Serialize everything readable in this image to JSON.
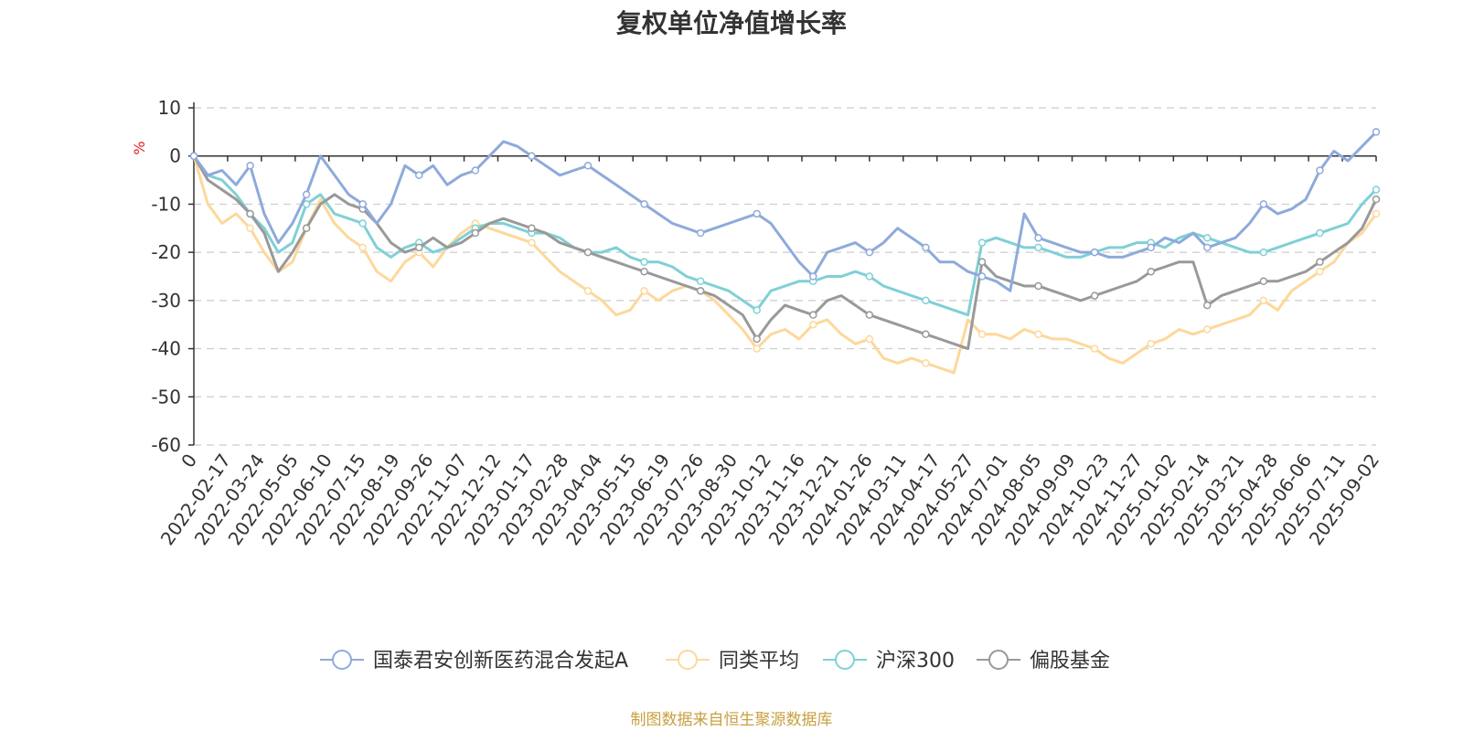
{
  "chart_data": {
    "type": "line",
    "title": "复权单位净值增长率",
    "ylabel": "%",
    "ylim": [
      -60,
      10
    ],
    "yticks": [
      "10",
      "0",
      "-10",
      "-20",
      "-30",
      "-40",
      "-50",
      "-60"
    ],
    "x_first_label": "0",
    "x_tick_labels": [
      "2022-02-17",
      "2022-03-24",
      "2022-05-05",
      "2022-06-10",
      "2022-07-15",
      "2022-08-19",
      "2022-09-26",
      "2022-11-07",
      "2022-12-12",
      "2023-01-17",
      "2023-02-28",
      "2023-04-04",
      "2023-05-15",
      "2023-06-19",
      "2023-07-26",
      "2023-08-30",
      "2023-10-12",
      "2023-11-16",
      "2023-12-21",
      "2024-01-26",
      "2024-03-11",
      "2024-04-17",
      "2024-05-27",
      "2024-07-01",
      "2024-08-05",
      "2024-09-09",
      "2024-10-23",
      "2024-11-27",
      "2025-01-02",
      "2025-02-14",
      "2025-03-21",
      "2025-04-28",
      "2025-06-06",
      "2025-07-11",
      "2025-09-02"
    ],
    "grid": true,
    "legend_position": "bottom",
    "series": [
      {
        "name": "国泰君安创新医药混合发起A",
        "color": "#8eaadb",
        "values": [
          0,
          -4,
          -3,
          -6,
          -2,
          -12,
          -18,
          -14,
          -8,
          0,
          -4,
          -8,
          -10,
          -14,
          -10,
          -2,
          -4,
          -2,
          -6,
          -4,
          -3,
          0,
          3,
          2,
          0,
          -2,
          -4,
          -3,
          -2,
          -4,
          -6,
          -8,
          -10,
          -12,
          -14,
          -15,
          -16,
          -15,
          -14,
          -13,
          -12,
          -14,
          -18,
          -22,
          -25,
          -20,
          -19,
          -18,
          -20,
          -18,
          -15,
          -17,
          -19,
          -22,
          -22,
          -24,
          -25,
          -26,
          -28,
          -12,
          -17,
          -18,
          -19,
          -20,
          -20,
          -21,
          -21,
          -20,
          -19,
          -17,
          -18,
          -16,
          -19,
          -18,
          -17,
          -14,
          -10,
          -12,
          -11,
          -9,
          -3,
          1,
          -1,
          2,
          5
        ]
      },
      {
        "name": "同类平均",
        "color": "#fdd89a",
        "values": [
          0,
          -10,
          -14,
          -12,
          -15,
          -20,
          -24,
          -22,
          -15,
          -9,
          -14,
          -17,
          -19,
          -24,
          -26,
          -22,
          -20,
          -23,
          -19,
          -16,
          -14,
          -15,
          -16,
          -17,
          -18,
          -21,
          -24,
          -26,
          -28,
          -30,
          -33,
          -32,
          -28,
          -30,
          -28,
          -27,
          -28,
          -30,
          -33,
          -36,
          -40,
          -37,
          -36,
          -38,
          -35,
          -34,
          -37,
          -39,
          -38,
          -42,
          -43,
          -42,
          -43,
          -44,
          -45,
          -34,
          -37,
          -37,
          -38,
          -36,
          -37,
          -38,
          -38,
          -39,
          -40,
          -42,
          -43,
          -41,
          -39,
          -38,
          -36,
          -37,
          -36,
          -35,
          -34,
          -33,
          -30,
          -32,
          -28,
          -26,
          -24,
          -22,
          -18,
          -16,
          -12
        ]
      },
      {
        "name": "沪深300",
        "color": "#7fd0d6",
        "values": [
          0,
          -4,
          -5,
          -8,
          -12,
          -15,
          -20,
          -18,
          -10,
          -8,
          -12,
          -13,
          -14,
          -19,
          -21,
          -19,
          -18,
          -20,
          -19,
          -17,
          -15,
          -14,
          -14,
          -15,
          -16,
          -16,
          -17,
          -19,
          -20,
          -20,
          -19,
          -21,
          -22,
          -22,
          -23,
          -25,
          -26,
          -27,
          -28,
          -30,
          -32,
          -28,
          -27,
          -26,
          -26,
          -25,
          -25,
          -24,
          -25,
          -27,
          -28,
          -29,
          -30,
          -31,
          -32,
          -33,
          -18,
          -17,
          -18,
          -19,
          -19,
          -20,
          -21,
          -21,
          -20,
          -19,
          -19,
          -18,
          -18,
          -19,
          -17,
          -16,
          -17,
          -18,
          -19,
          -20,
          -20,
          -19,
          -18,
          -17,
          -16,
          -15,
          -14,
          -10,
          -7
        ]
      },
      {
        "name": "偏股基金",
        "color": "#999999",
        "values": [
          0,
          -5,
          -7,
          -9,
          -12,
          -16,
          -24,
          -20,
          -15,
          -10,
          -8,
          -10,
          -11,
          -14,
          -18,
          -20,
          -19,
          -17,
          -19,
          -18,
          -16,
          -14,
          -13,
          -14,
          -15,
          -16,
          -18,
          -19,
          -20,
          -21,
          -22,
          -23,
          -24,
          -25,
          -26,
          -27,
          -28,
          -29,
          -31,
          -33,
          -38,
          -34,
          -31,
          -32,
          -33,
          -30,
          -29,
          -31,
          -33,
          -34,
          -35,
          -36,
          -37,
          -38,
          -39,
          -40,
          -22,
          -25,
          -26,
          -27,
          -27,
          -28,
          -29,
          -30,
          -29,
          -28,
          -27,
          -26,
          -24,
          -23,
          -22,
          -22,
          -31,
          -29,
          -28,
          -27,
          -26,
          -26,
          -25,
          -24,
          -22,
          -20,
          -18,
          -15,
          -9
        ]
      }
    ]
  },
  "source_note": "制图数据来自恒生聚源数据库"
}
